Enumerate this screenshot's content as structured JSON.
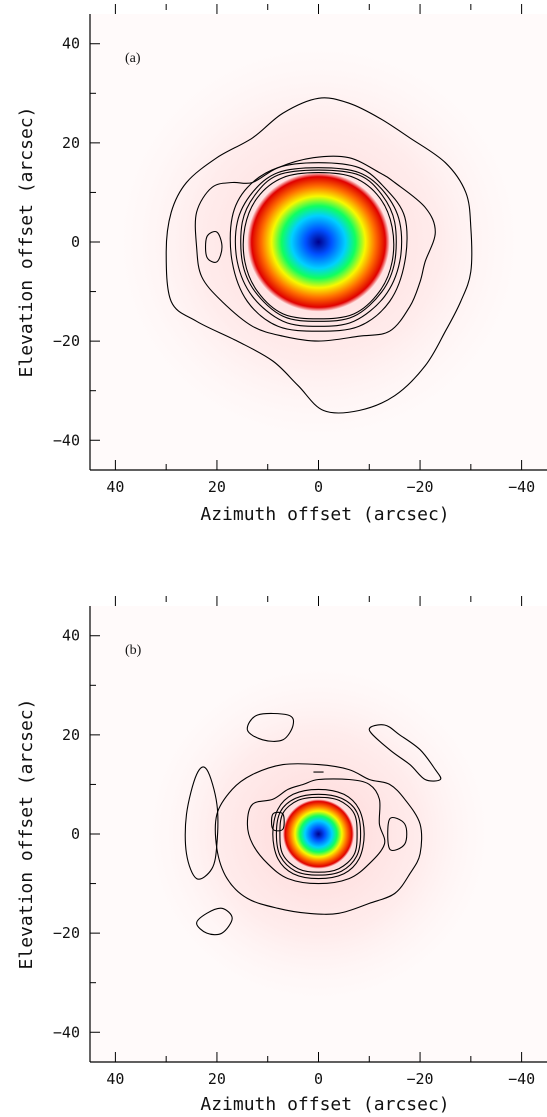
{
  "chart_data": [
    {
      "type": "heatmap",
      "panel_label": "(a)",
      "xlabel": "Azimuth offset (arcsec)",
      "ylabel": "Elevation offset (arcsec)",
      "xlim": [
        45,
        -45
      ],
      "ylim": [
        -46,
        46
      ],
      "x_ticks": [
        40,
        20,
        0,
        -20,
        -40
      ],
      "x_tick_labels": [
        "40",
        "20",
        "0",
        "−20",
        "−40"
      ],
      "y_ticks": [
        40,
        20,
        0,
        -20,
        -40
      ],
      "y_tick_labels": [
        "40",
        "20",
        "0",
        "−20",
        "−40"
      ],
      "colormap": [
        "#00008b",
        "#0050ff",
        "#00d0ff",
        "#10ff60",
        "#f8f800",
        "#ff7000",
        "#e00000",
        "#ffd8d8"
      ],
      "core": {
        "center": [
          0,
          0
        ],
        "radius": 14
      },
      "contours": [
        {
          "points": [
            [
              0,
              29
            ],
            [
              -6,
              28
            ],
            [
              -12,
              25
            ],
            [
              -18,
              21
            ],
            [
              -25,
              16
            ],
            [
              -29,
              10
            ],
            [
              -30,
              3
            ],
            [
              -30,
              -6
            ],
            [
              -28,
              -12
            ],
            [
              -25,
              -18
            ],
            [
              -21,
              -25
            ],
            [
              -15,
              -31
            ],
            [
              -8,
              -34
            ],
            [
              -1,
              -34
            ],
            [
              4,
              -29
            ],
            [
              9,
              -24
            ],
            [
              16,
              -20
            ],
            [
              24,
              -16
            ],
            [
              29,
              -12
            ],
            [
              30,
              -2
            ],
            [
              29,
              6
            ],
            [
              26,
              12
            ],
            [
              20,
              17
            ],
            [
              13,
              21
            ],
            [
              7,
              26
            ]
          ]
        },
        {
          "points": [
            [
              1,
              17
            ],
            [
              -6,
              17
            ],
            [
              -12,
              14
            ],
            [
              -15,
              12
            ],
            [
              -21,
              7
            ],
            [
              -23,
              2
            ],
            [
              -21,
              -4
            ],
            [
              -20,
              -8
            ],
            [
              -18,
              -13
            ],
            [
              -14,
              -18
            ],
            [
              -8,
              -19
            ],
            [
              0,
              -20
            ],
            [
              7,
              -19
            ],
            [
              13,
              -17
            ],
            [
              19,
              -12
            ],
            [
              23,
              -7
            ],
            [
              24,
              -1
            ],
            [
              24,
              6
            ],
            [
              21,
              11
            ],
            [
              17,
              12
            ],
            [
              13,
              12
            ],
            [
              8,
              15
            ]
          ]
        },
        {
          "points": [
            [
              20,
              2
            ],
            [
              22,
              1
            ],
            [
              22,
              -3
            ],
            [
              20,
              -4
            ],
            [
              19,
              -1
            ]
          ]
        },
        {
          "points": [
            [
              0,
              16
            ],
            [
              -8,
              15
            ],
            [
              -13,
              11
            ],
            [
              -17,
              5
            ],
            [
              -17,
              -4
            ],
            [
              -14,
              -12
            ],
            [
              -8,
              -17
            ],
            [
              0,
              -18
            ],
            [
              8,
              -17
            ],
            [
              14,
              -12
            ],
            [
              17,
              -4
            ],
            [
              17,
              5
            ],
            [
              14,
              11
            ],
            [
              8,
              15
            ]
          ]
        },
        {
          "points": [
            [
              0,
              15
            ],
            [
              -8,
              14
            ],
            [
              -13,
              10
            ],
            [
              -16,
              4
            ],
            [
              -16,
              -4
            ],
            [
              -13,
              -11
            ],
            [
              -7,
              -16
            ],
            [
              0,
              -17
            ],
            [
              7,
              -16
            ],
            [
              13,
              -11
            ],
            [
              16,
              -4
            ],
            [
              16,
              4
            ],
            [
              13,
              10
            ],
            [
              8,
              14
            ]
          ]
        },
        {
          "points": [
            [
              0,
              14.5
            ],
            [
              -8,
              13.5
            ],
            [
              -12.5,
              9.5
            ],
            [
              -15,
              4
            ],
            [
              -15,
              -4
            ],
            [
              -12.5,
              -10
            ],
            [
              -7,
              -15
            ],
            [
              0,
              -16
            ],
            [
              7,
              -15
            ],
            [
              12.5,
              -10
            ],
            [
              15,
              -4
            ],
            [
              15,
              4
            ],
            [
              12.5,
              9.5
            ],
            [
              8,
              13.5
            ]
          ]
        },
        {
          "points": [
            [
              0,
              14
            ],
            [
              -7,
              13
            ],
            [
              -12,
              9
            ],
            [
              -14.5,
              3
            ],
            [
              -14.5,
              -4
            ],
            [
              -12,
              -10
            ],
            [
              -7,
              -14.5
            ],
            [
              0,
              -15.5
            ],
            [
              7,
              -14.5
            ],
            [
              12,
              -10
            ],
            [
              14.5,
              -4
            ],
            [
              14.5,
              3
            ],
            [
              12,
              9
            ],
            [
              7,
              13
            ]
          ]
        }
      ]
    },
    {
      "type": "heatmap",
      "panel_label": "(b)",
      "xlabel": "Azimuth offset (arcsec)",
      "ylabel": "Elevation offset (arcsec)",
      "xlim": [
        45,
        -45
      ],
      "ylim": [
        -46,
        46
      ],
      "x_ticks": [
        40,
        20,
        0,
        -20,
        -40
      ],
      "x_tick_labels": [
        "40",
        "20",
        "0",
        "−20",
        "−40"
      ],
      "y_ticks": [
        40,
        20,
        0,
        -20,
        -40
      ],
      "y_tick_labels": [
        "40",
        "20",
        "0",
        "−20",
        "−40"
      ],
      "colormap": [
        "#00008b",
        "#0050ff",
        "#00d0ff",
        "#10ff60",
        "#f8f800",
        "#ff7000",
        "#e00000",
        "#ffd8d8"
      ],
      "core": {
        "center": [
          0,
          0
        ],
        "radius": 7
      },
      "contours": [
        {
          "points": [
            [
              0,
              14
            ],
            [
              -6,
              13
            ],
            [
              -10,
              11
            ],
            [
              -14,
              10
            ],
            [
              -17,
              7
            ],
            [
              -20,
              2
            ],
            [
              -20,
              -4
            ],
            [
              -18,
              -8
            ],
            [
              -15,
              -12
            ],
            [
              -10,
              -14
            ],
            [
              -4,
              -16
            ],
            [
              2,
              -16
            ],
            [
              8,
              -15
            ],
            [
              14,
              -13
            ],
            [
              18,
              -9
            ],
            [
              20,
              -3
            ],
            [
              20,
              4
            ],
            [
              17,
              9
            ],
            [
              13,
              12
            ],
            [
              7,
              14
            ]
          ]
        },
        {
          "points": [
            [
              0,
              11
            ],
            [
              -6,
              11
            ],
            [
              -10,
              10
            ],
            [
              -12,
              7
            ],
            [
              -12,
              2
            ],
            [
              -13,
              -2
            ],
            [
              -10,
              -6
            ],
            [
              -6,
              -9
            ],
            [
              0,
              -10
            ],
            [
              6,
              -9
            ],
            [
              10,
              -6
            ],
            [
              13,
              -2
            ],
            [
              14,
              2
            ],
            [
              13,
              6
            ],
            [
              9,
              7
            ],
            [
              6,
              9
            ],
            [
              3,
              10
            ]
          ]
        },
        {
          "points": [
            [
              -14,
              3
            ],
            [
              -17,
              2
            ],
            [
              -17,
              -2
            ],
            [
              -14,
              -3
            ]
          ]
        },
        {
          "points": [
            [
              9,
              4
            ],
            [
              7,
              4
            ],
            [
              7,
              1
            ],
            [
              9,
              1
            ]
          ]
        },
        {
          "points": [
            [
              0,
              9
            ],
            [
              -5,
              8
            ],
            [
              -8,
              5
            ],
            [
              -9,
              0
            ],
            [
              -8,
              -5
            ],
            [
              -5,
              -8
            ],
            [
              0,
              -9
            ],
            [
              5,
              -8
            ],
            [
              8,
              -5
            ],
            [
              9,
              0
            ],
            [
              8,
              5
            ],
            [
              5,
              8
            ]
          ]
        },
        {
          "points": [
            [
              0,
              8
            ],
            [
              -4.5,
              7.2
            ],
            [
              -7.5,
              4.5
            ],
            [
              -8.3,
              0
            ],
            [
              -7.5,
              -4.5
            ],
            [
              -4.5,
              -7.5
            ],
            [
              0,
              -8.3
            ],
            [
              4.5,
              -7.5
            ],
            [
              7.5,
              -4.5
            ],
            [
              8.3,
              0
            ],
            [
              7.5,
              4.5
            ],
            [
              4.5,
              7.2
            ]
          ]
        },
        {
          "points": [
            [
              0,
              7.4
            ],
            [
              -4,
              6.8
            ],
            [
              -7,
              4.2
            ],
            [
              -7.6,
              0
            ],
            [
              -7,
              -4.2
            ],
            [
              -4,
              -7
            ],
            [
              0,
              -7.7
            ],
            [
              4,
              -7
            ],
            [
              7,
              -4.2
            ],
            [
              7.6,
              0
            ],
            [
              7,
              4.2
            ],
            [
              4,
              6.8
            ]
          ]
        },
        {
          "points": [
            [
              12,
              24
            ],
            [
              6,
              24
            ],
            [
              5,
              22
            ],
            [
              7,
              19
            ],
            [
              11,
              19
            ],
            [
              14,
              21
            ]
          ]
        },
        {
          "points": [
            [
              -10,
              21
            ],
            [
              -13,
              22
            ],
            [
              -16,
              20
            ],
            [
              -20,
              17
            ],
            [
              -23,
              13
            ],
            [
              -24,
              11
            ],
            [
              -21,
              11
            ],
            [
              -18,
              14
            ],
            [
              -14,
              17
            ]
          ]
        },
        {
          "points": [
            [
              22,
              13
            ],
            [
              20,
              6
            ],
            [
              20,
              -2
            ],
            [
              21,
              -7
            ],
            [
              24,
              -9
            ],
            [
              26,
              -4
            ],
            [
              26,
              4
            ],
            [
              24,
              12
            ]
          ]
        },
        {
          "points": [
            [
              22,
              -16
            ],
            [
              19,
              -15
            ],
            [
              17,
              -17
            ],
            [
              19,
              -20
            ],
            [
              22,
              -20
            ],
            [
              24,
              -18
            ]
          ]
        },
        {
          "points": [
            [
              1,
              12.5
            ],
            [
              -1,
              12.5
            ]
          ]
        }
      ]
    }
  ]
}
